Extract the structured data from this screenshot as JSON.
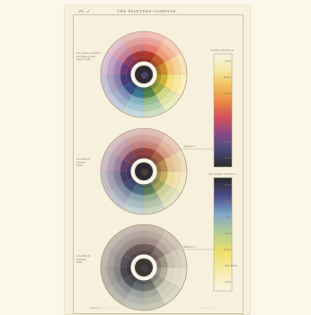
{
  "plate": {
    "number": "Pl. 2",
    "title": "THE PAINTERS COMPASS."
  },
  "wheel_notes": {
    "top": [
      "The colours of Nature",
      "according to their",
      "natural order."
    ],
    "middle": [
      "according to",
      "Newton's",
      "Table."
    ],
    "bottom": [
      "according to",
      "Newton's",
      "Table."
    ]
  },
  "figure_captions": [
    "Rainbow 1.",
    "Rainbow 2."
  ],
  "bars": {
    "top": {
      "heading": "FIRST EFFECT.",
      "labels": [
        "White",
        "Yellow",
        "Orange",
        "Red",
        "Purple",
        "Indigo",
        "Black"
      ]
    },
    "bottom": {
      "heading": "SECOND EFFECT.",
      "labels": [
        "Black",
        "Indigo",
        "Blue",
        "Green",
        "Yellow",
        "Pale Yellow",
        "White"
      ]
    }
  },
  "imprint": {
    "left": "Published by — — — — — —",
    "right": "— — — — — —"
  },
  "colors": {
    "paper": "#fbf7ea",
    "plate": "#f6f0dd",
    "ink": "#8b7a5e",
    "spectrum": [
      "#d63a2c",
      "#e8672b",
      "#f0a12e",
      "#f3d23a",
      "#b9c64a",
      "#5a9a55",
      "#3f8aa8",
      "#3d5aa0",
      "#4b3f8c",
      "#7a3e8f",
      "#a3416f",
      "#c23a3f"
    ]
  }
}
